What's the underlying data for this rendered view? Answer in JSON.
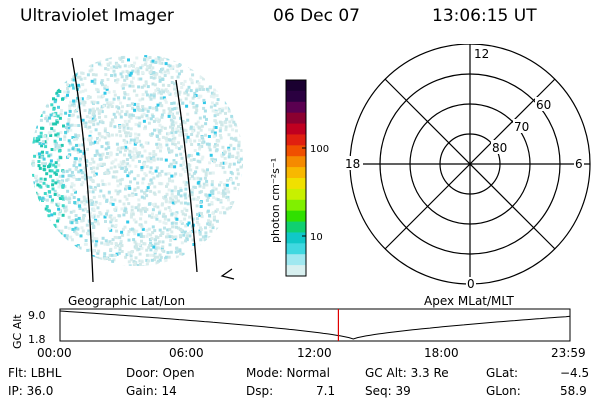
{
  "header": {
    "instrument": "Ultraviolet Imager",
    "date": "06 Dec 07",
    "time": "13:06:15 UT"
  },
  "colorbar": {
    "label": "photon cm⁻²s⁻¹",
    "ticks": [
      "100",
      "10"
    ],
    "colors": [
      "#1a0030",
      "#2a0040",
      "#5a0050",
      "#8b0030",
      "#c00020",
      "#e02010",
      "#f05000",
      "#f58a00",
      "#f8b800",
      "#f0e000",
      "#c8f000",
      "#80f000",
      "#30e000",
      "#10d070",
      "#10c8c8",
      "#40d8e0",
      "#a0e8f0",
      "#d8f0f0"
    ]
  },
  "polar": {
    "mlt_top": "12",
    "mlt_bottom": "0",
    "mlt_left": "18",
    "mlt_right": "6",
    "lat_labels": [
      "60",
      "70",
      "80"
    ]
  },
  "timeline": {
    "axis_label": "GC Alt",
    "y_ticks": [
      "9.0",
      "1.8"
    ],
    "left_title": "Geographic Lat/Lon",
    "right_title": "Apex MLat/MLT",
    "x_ticks": [
      "00:00",
      "06:00",
      "12:00",
      "18:00",
      "23:59"
    ],
    "current_time_hours": 13.1
  },
  "info": {
    "filter": "Flt: LBHL",
    "ip": "IP: 36.0",
    "door": "Door: Open",
    "gain": "Gain: 14",
    "mode": "Mode: Normal",
    "dsp_label": "Dsp:",
    "dsp_value": "7.1",
    "gc_alt": "GC Alt: 3.3 Re",
    "seq": "Seq: 39",
    "glat_label": "GLat:",
    "glat_value": "−4.5",
    "glon_label": "GLon:",
    "glon_value": "58.9"
  }
}
